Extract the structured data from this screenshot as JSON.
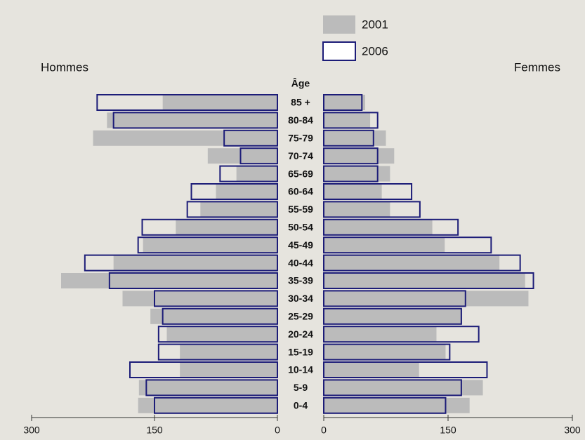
{
  "chart_data": {
    "type": "population_pyramid",
    "category_label": "Âge",
    "categories": [
      "85 +",
      "80-84",
      "75-79",
      "70-74",
      "65-69",
      "60-64",
      "55-59",
      "50-54",
      "45-49",
      "40-44",
      "35-39",
      "30-34",
      "25-29",
      "20-24",
      "15-19",
      "10-14",
      "5-9",
      "0-4"
    ],
    "series": [
      {
        "name": "2001",
        "color": "#bbbbbb",
        "filled": true
      },
      {
        "name": "2006",
        "color": "#1c1c78",
        "filled": false
      }
    ],
    "sides": [
      {
        "label": "Hommes",
        "values": [
          [
            140,
            208,
            225,
            85,
            50,
            75,
            94,
            124,
            164,
            200,
            264,
            189,
            155,
            135,
            119,
            119,
            169,
            170
          ],
          [
            220,
            200,
            65,
            45,
            70,
            105,
            110,
            165,
            170,
            235,
            205,
            150,
            140,
            145,
            145,
            180,
            160,
            150
          ]
        ]
      },
      {
        "label": "Femmes",
        "values": [
          [
            50,
            56,
            75,
            85,
            80,
            70,
            80,
            131,
            146,
            212,
            243,
            247,
            167,
            136,
            147,
            115,
            192,
            176
          ],
          [
            46,
            65,
            60,
            65,
            65,
            106,
            116,
            162,
            202,
            237,
            253,
            171,
            166,
            187,
            152,
            197,
            166,
            147
          ]
        ]
      }
    ],
    "xlim": [
      0,
      300
    ],
    "xticks": [
      0,
      150,
      300
    ]
  }
}
